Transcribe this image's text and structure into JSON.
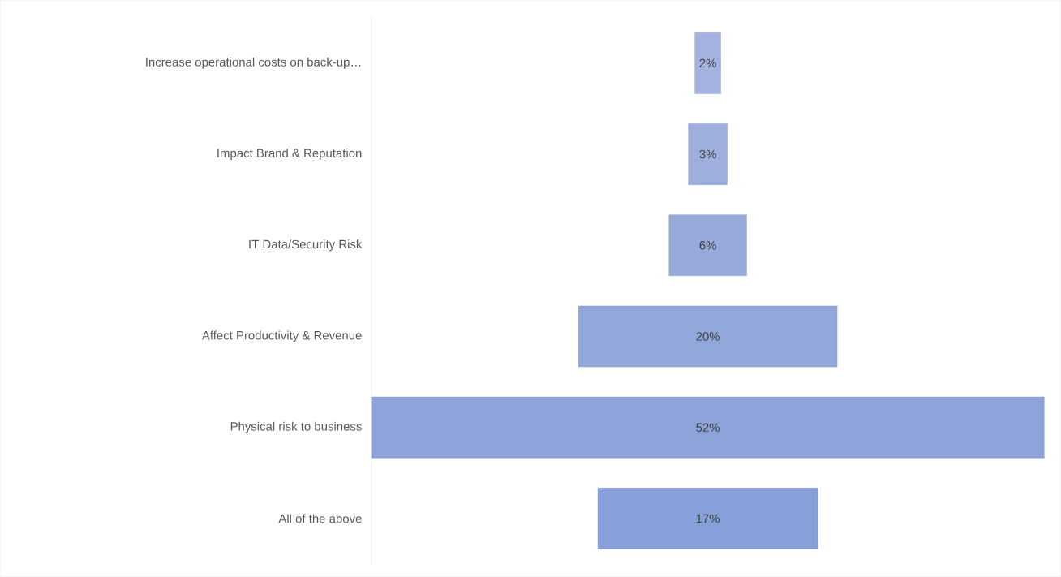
{
  "chart_data": {
    "type": "other",
    "categories": [
      "Increase operational costs on back-up…",
      "Impact Brand & Reputation",
      "IT Data/Security Risk",
      "Affect Productivity & Revenue",
      "Physical risk to business",
      "All of the above"
    ],
    "values": [
      2,
      3,
      6,
      20,
      52,
      17
    ],
    "value_labels": [
      "2%",
      "3%",
      "6%",
      "20%",
      "52%",
      "17%"
    ],
    "colors": [
      "#a3b2df",
      "#9eaedd",
      "#98aada",
      "#93a8da",
      "#8da3d9",
      "#87a0d9"
    ]
  }
}
